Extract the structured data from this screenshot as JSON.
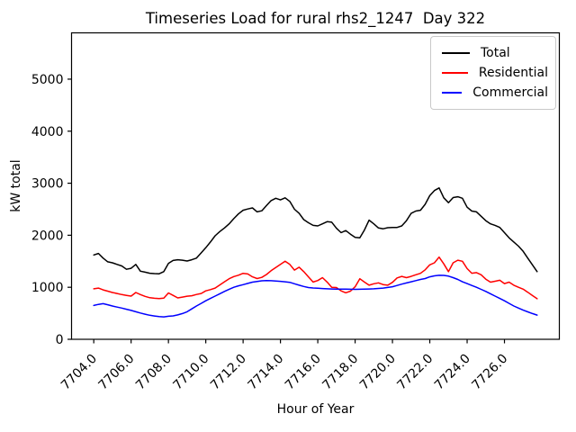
{
  "chart_data": {
    "type": "line",
    "title": "Timeseries Load for rural rhs2_1247  Day 322",
    "xlabel": "Hour of Year",
    "ylabel": "kW total",
    "grid": false,
    "legend_position": "upper right",
    "xlim": [
      7702.81,
      7728.94
    ],
    "ylim": [
      0,
      5890
    ],
    "xticks": {
      "values": [
        7704,
        7706,
        7708,
        7710,
        7712,
        7714,
        7716,
        7718,
        7720,
        7722,
        7724,
        7726
      ],
      "labels": [
        "7704.0",
        "7706.0",
        "7708.0",
        "7710.0",
        "7712.0",
        "7714.0",
        "7716.0",
        "7718.0",
        "7720.0",
        "7722.0",
        "7724.0",
        "7726.0"
      ]
    },
    "yticks": {
      "values": [
        0,
        1000,
        2000,
        3000,
        4000,
        5000
      ],
      "labels": [
        "0",
        "1000",
        "2000",
        "3000",
        "4000",
        "5000"
      ]
    },
    "x": [
      7704.0,
      7704.25,
      7704.5,
      7704.75,
      7705.0,
      7705.25,
      7705.5,
      7705.75,
      7706.0,
      7706.25,
      7706.5,
      7706.75,
      7707.0,
      7707.25,
      7707.5,
      7707.75,
      7708.0,
      7708.25,
      7708.5,
      7708.75,
      7709.0,
      7709.25,
      7709.5,
      7709.75,
      7710.0,
      7710.25,
      7710.5,
      7710.75,
      7711.0,
      7711.25,
      7711.5,
      7711.75,
      7712.0,
      7712.25,
      7712.5,
      7712.75,
      7713.0,
      7713.25,
      7713.5,
      7713.75,
      7714.0,
      7714.25,
      7714.5,
      7714.75,
      7715.0,
      7715.25,
      7715.5,
      7715.75,
      7716.0,
      7716.25,
      7716.5,
      7716.75,
      7717.0,
      7717.25,
      7717.5,
      7717.75,
      7718.0,
      7718.25,
      7718.5,
      7718.75,
      7719.0,
      7719.25,
      7719.5,
      7719.75,
      7720.0,
      7720.25,
      7720.5,
      7720.75,
      7721.0,
      7721.25,
      7721.5,
      7721.75,
      7722.0,
      7722.25,
      7722.5,
      7722.75,
      7723.0,
      7723.25,
      7723.5,
      7723.75,
      7724.0,
      7724.25,
      7724.5,
      7724.75,
      7725.0,
      7725.25,
      7725.5,
      7725.75,
      7726.0,
      7726.25,
      7726.5,
      7726.75,
      7727.0,
      7727.25,
      7727.5,
      7727.75
    ],
    "series": [
      {
        "name": "Total",
        "color": "#000000",
        "values": [
          1620,
          1650,
          1560,
          1490,
          1470,
          1440,
          1410,
          1345,
          1365,
          1440,
          1310,
          1290,
          1270,
          1262,
          1260,
          1300,
          1460,
          1515,
          1530,
          1520,
          1505,
          1530,
          1560,
          1660,
          1760,
          1870,
          1990,
          2070,
          2140,
          2220,
          2320,
          2410,
          2480,
          2505,
          2525,
          2450,
          2470,
          2570,
          2665,
          2710,
          2680,
          2720,
          2650,
          2500,
          2420,
          2300,
          2240,
          2190,
          2180,
          2220,
          2260,
          2250,
          2135,
          2050,
          2090,
          2020,
          1960,
          1952,
          2100,
          2290,
          2220,
          2140,
          2125,
          2145,
          2150,
          2150,
          2180,
          2280,
          2420,
          2465,
          2480,
          2595,
          2760,
          2860,
          2910,
          2720,
          2625,
          2725,
          2740,
          2710,
          2540,
          2465,
          2450,
          2365,
          2280,
          2220,
          2190,
          2150,
          2050,
          1950,
          1870,
          1790,
          1690,
          1560,
          1430,
          1300
        ]
      },
      {
        "name": "Residential",
        "color": "#ff0000",
        "values": [
          970,
          985,
          950,
          925,
          900,
          880,
          860,
          845,
          830,
          900,
          860,
          825,
          800,
          788,
          782,
          792,
          890,
          845,
          795,
          812,
          828,
          838,
          862,
          880,
          930,
          955,
          985,
          1045,
          1105,
          1165,
          1205,
          1232,
          1268,
          1255,
          1200,
          1168,
          1190,
          1245,
          1318,
          1380,
          1440,
          1500,
          1440,
          1330,
          1385,
          1300,
          1200,
          1100,
          1130,
          1185,
          1100,
          1000,
          995,
          930,
          895,
          925,
          1010,
          1165,
          1100,
          1040,
          1068,
          1085,
          1052,
          1040,
          1095,
          1180,
          1210,
          1185,
          1210,
          1240,
          1268,
          1335,
          1430,
          1470,
          1580,
          1450,
          1300,
          1470,
          1520,
          1500,
          1360,
          1270,
          1282,
          1240,
          1155,
          1098,
          1115,
          1135,
          1070,
          1098,
          1040,
          1000,
          963,
          905,
          840,
          780
        ]
      },
      {
        "name": "Commercial",
        "color": "#0000ff",
        "values": [
          650,
          672,
          685,
          665,
          640,
          620,
          600,
          578,
          555,
          530,
          505,
          482,
          462,
          448,
          436,
          430,
          442,
          450,
          468,
          495,
          530,
          585,
          640,
          690,
          740,
          785,
          830,
          875,
          920,
          962,
          1000,
          1028,
          1050,
          1075,
          1098,
          1112,
          1125,
          1128,
          1126,
          1120,
          1114,
          1105,
          1095,
          1068,
          1040,
          1015,
          995,
          986,
          980,
          975,
          970,
          967,
          965,
          964,
          963,
          962,
          960,
          962,
          964,
          967,
          970,
          977,
          985,
          996,
          1010,
          1035,
          1060,
          1082,
          1105,
          1128,
          1150,
          1168,
          1200,
          1220,
          1230,
          1228,
          1215,
          1185,
          1150,
          1105,
          1070,
          1035,
          1000,
          960,
          920,
          875,
          830,
          785,
          740,
          690,
          640,
          600,
          560,
          528,
          495,
          465
        ]
      }
    ],
    "axis_color": "#000000",
    "background_color": "#ffffff"
  }
}
